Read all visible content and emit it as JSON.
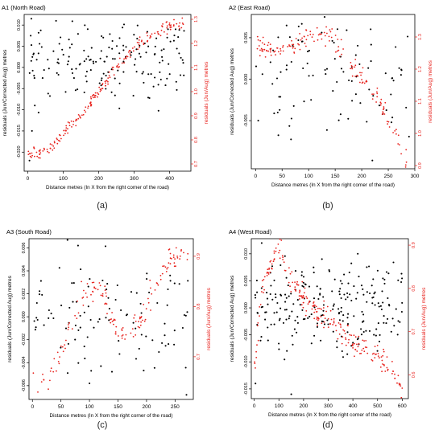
{
  "figure": {
    "captions": [
      "(a)",
      "(b)",
      "(c)",
      "(d)"
    ]
  },
  "colors": {
    "left_series": "#000000",
    "right_series": "#e8221d"
  },
  "chart_data": [
    {
      "type": "scatter",
      "title": "A1 (North Road)",
      "xlabel": "Distance metres (In X from the right corner of the road)",
      "ylabel": "residuals (Jun/Corrected Aug) metres",
      "y2label": "residuals (Jun/Aug) metres",
      "xlim": [
        -10,
        460
      ],
      "ylim": [
        -0.0245,
        0.0125
      ],
      "y2lim": [
        0.67,
        1.32
      ],
      "xticks": [
        0,
        100,
        200,
        300,
        400
      ],
      "xtick_labels": [
        "0",
        "100",
        "200",
        "300",
        "400"
      ],
      "yticks": [
        -0.02,
        -0.015,
        -0.01,
        -0.005,
        0.0,
        0.005,
        0.01
      ],
      "ytick_labels": [
        "-0.020",
        "-0.015",
        "-0.010",
        "-0.005",
        "0.000",
        "0.005",
        "0.010"
      ],
      "y2ticks": [
        0.7,
        0.8,
        0.9,
        1.0,
        1.1,
        1.2,
        1.3
      ],
      "y2tick_labels": [
        "0.7",
        "0.8",
        "0.9",
        "1.0",
        "1.1",
        "1.2",
        "1.3"
      ],
      "grid": false,
      "series": [
        {
          "axis": "left",
          "color": "#000000",
          "seed": 11,
          "xmin": 0,
          "xmax": 445,
          "n": 170,
          "profile": [
            [
              0,
              0.0015
            ],
            [
              445,
              0.001
            ]
          ],
          "noise": 0.0045,
          "extra": [
            [
              5,
              -0.022
            ],
            [
              12,
              -0.015
            ],
            [
              80,
              0.011
            ],
            [
              20,
              -0.009
            ]
          ]
        },
        {
          "axis": "right",
          "color": "#e8221d",
          "seed": 23,
          "xmin": 0,
          "xmax": 440,
          "n": 200,
          "profile": [
            [
              0,
              0.74
            ],
            [
              60,
              0.76
            ],
            [
              100,
              0.83
            ],
            [
              150,
              0.9
            ],
            [
              200,
              1.0
            ],
            [
              250,
              1.1
            ],
            [
              300,
              1.18
            ],
            [
              350,
              1.24
            ],
            [
              400,
              1.27
            ],
            [
              440,
              1.28
            ]
          ],
          "noise": 0.012,
          "extra": []
        }
      ]
    },
    {
      "type": "scatter",
      "title": "A2 (East Road)",
      "xlabel": "Distance metres (In X from the right corner of the road)",
      "ylabel": "residuals (Jun/Corrected Aug) metres",
      "y2label": "residuals (Jun/Aug) metres",
      "xlim": [
        -8,
        300
      ],
      "ylim": [
        -0.0108,
        0.0078
      ],
      "y2lim": [
        0.89,
        1.37
      ],
      "xticks": [
        0,
        50,
        100,
        150,
        200,
        250,
        300
      ],
      "xtick_labels": [
        "0",
        "50",
        "100",
        "150",
        "200",
        "250",
        "300"
      ],
      "yticks": [
        -0.005,
        0.0,
        0.005
      ],
      "ytick_labels": [
        "-0.005",
        "0.000",
        "0.005"
      ],
      "y2ticks": [
        0.9,
        1.0,
        1.1,
        1.2,
        1.3
      ],
      "y2tick_labels": [
        "0.9",
        "1.0",
        "1.1",
        "1.2",
        "1.3"
      ],
      "grid": false,
      "series": [
        {
          "axis": "left",
          "color": "#000000",
          "seed": 31,
          "xmin": 0,
          "xmax": 290,
          "n": 90,
          "profile": [
            [
              0,
              0.0003
            ],
            [
              290,
              0.0002
            ]
          ],
          "noise": 0.0032,
          "extra": [
            [
              220,
              -0.0098
            ],
            [
              130,
              0.0075
            ],
            [
              5,
              -0.005
            ]
          ]
        },
        {
          "axis": "right",
          "color": "#e8221d",
          "seed": 37,
          "xmin": 0,
          "xmax": 290,
          "n": 160,
          "profile": [
            [
              0,
              1.28
            ],
            [
              50,
              1.25
            ],
            [
              100,
              1.3
            ],
            [
              140,
              1.3
            ],
            [
              170,
              1.23
            ],
            [
              200,
              1.18
            ],
            [
              230,
              1.1
            ],
            [
              260,
              1.02
            ],
            [
              280,
              0.93
            ],
            [
              290,
              0.9
            ]
          ],
          "noise": 0.015,
          "extra": []
        }
      ]
    },
    {
      "type": "scatter",
      "title": "A3 (South Road)",
      "xlabel": "Distance metres (In X from the right corner of the road)",
      "ylabel": "residuals (Jun/Corrected Aug) metres",
      "y2label": "residuals (Jun/Aug) metres",
      "xlim": [
        -6,
        282
      ],
      "ylim": [
        -0.0072,
        0.0068
      ],
      "y2lim": [
        0.615,
        0.935
      ],
      "xticks": [
        0,
        50,
        100,
        150,
        200,
        250
      ],
      "xtick_labels": [
        "0",
        "50",
        "100",
        "150",
        "200",
        "250"
      ],
      "yticks": [
        -0.006,
        -0.004,
        -0.002,
        0.0,
        0.002,
        0.004,
        0.006
      ],
      "ytick_labels": [
        "-0.006",
        "-0.004",
        "-0.002",
        "0.000",
        "0.002",
        "0.004",
        "0.006"
      ],
      "y2ticks": [
        0.7,
        0.8,
        0.9
      ],
      "y2tick_labels": [
        "0.7",
        "0.8",
        "0.9"
      ],
      "grid": false,
      "series": [
        {
          "axis": "left",
          "color": "#000000",
          "seed": 41,
          "xmin": 0,
          "xmax": 275,
          "n": 100,
          "profile": [
            [
              0,
              0.0002
            ],
            [
              275,
              0.0001
            ]
          ],
          "noise": 0.0024,
          "extra": [
            [
              80,
              0.0062
            ],
            [
              100,
              -0.0058
            ],
            [
              270,
              -0.0068
            ],
            [
              120,
              -0.0043
            ]
          ]
        },
        {
          "axis": "right",
          "color": "#e8221d",
          "seed": 47,
          "xmin": 0,
          "xmax": 275,
          "n": 150,
          "profile": [
            [
              0,
              0.64
            ],
            [
              30,
              0.66
            ],
            [
              60,
              0.74
            ],
            [
              90,
              0.83
            ],
            [
              120,
              0.84
            ],
            [
              150,
              0.75
            ],
            [
              180,
              0.75
            ],
            [
              210,
              0.83
            ],
            [
              240,
              0.89
            ],
            [
              260,
              0.91
            ],
            [
              275,
              0.92
            ]
          ],
          "noise": 0.013,
          "extra": []
        }
      ]
    },
    {
      "type": "scatter",
      "title": "A4 (West Road)",
      "xlabel": "Distance metres (In X from the right corner of the road)",
      "ylabel": "residuals (Jun/Corrected Aug) metres",
      "y2label": "residuals (Jun/Aug) metres",
      "xlim": [
        -12,
        625
      ],
      "ylim": [
        -0.0168,
        0.0128
      ],
      "y2lim": [
        0.545,
        0.915
      ],
      "xticks": [
        0,
        100,
        200,
        300,
        400,
        500,
        600
      ],
      "xtick_labels": [
        "0",
        "100",
        "200",
        "300",
        "400",
        "500",
        "600"
      ],
      "yticks": [
        -0.015,
        -0.01,
        -0.005,
        0.0,
        0.005,
        0.01
      ],
      "ytick_labels": [
        "-0.015",
        "-0.010",
        "-0.005",
        "0.000",
        "0.005",
        "0.010"
      ],
      "y2ticks": [
        0.6,
        0.7,
        0.8,
        0.9
      ],
      "y2tick_labels": [
        "0.6",
        "0.7",
        "0.8",
        "0.9"
      ],
      "grid": false,
      "series": [
        {
          "axis": "left",
          "color": "#000000",
          "seed": 53,
          "xmin": 0,
          "xmax": 600,
          "n": 230,
          "profile": [
            [
              0,
              0.0005
            ],
            [
              600,
              0.0005
            ]
          ],
          "noise": 0.0042,
          "extra": [
            [
              150,
              -0.016
            ],
            [
              420,
              0.01
            ],
            [
              30,
              0.012
            ],
            [
              5,
              -0.014
            ]
          ]
        },
        {
          "axis": "right",
          "color": "#e8221d",
          "seed": 59,
          "xmin": 0,
          "xmax": 600,
          "n": 230,
          "profile": [
            [
              0,
              0.62
            ],
            [
              30,
              0.79
            ],
            [
              80,
              0.88
            ],
            [
              110,
              0.89
            ],
            [
              160,
              0.8
            ],
            [
              230,
              0.76
            ],
            [
              320,
              0.72
            ],
            [
              420,
              0.67
            ],
            [
              500,
              0.65
            ],
            [
              560,
              0.61
            ],
            [
              600,
              0.57
            ]
          ],
          "noise": 0.014,
          "extra": []
        }
      ]
    }
  ]
}
